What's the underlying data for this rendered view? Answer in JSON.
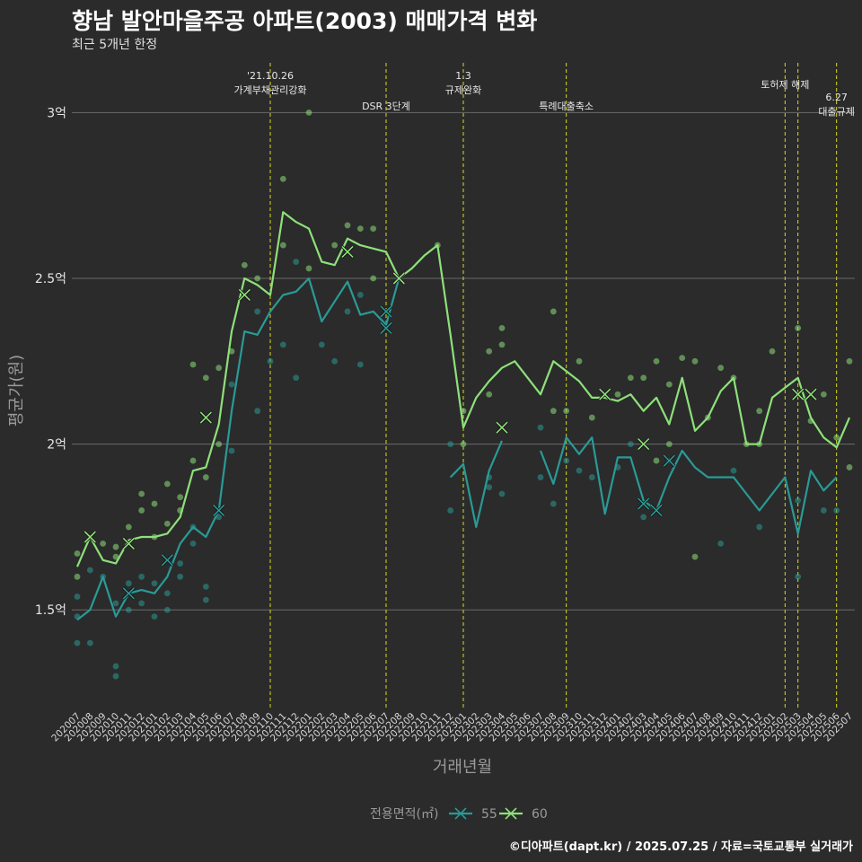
{
  "title": "향남 발안마을주공 아파트(2003) 매매가격 변화",
  "subtitle": "최근 5개년 한정",
  "caption": "©디아파트(dapt.kr) / 2025.07.25 / 자료=국토교통부 실거래가",
  "chart_data": {
    "type": "line",
    "xlabel": "거래년월",
    "ylabel": "평균가(원)",
    "ylim": [
      1.2,
      3.15
    ],
    "yticks": [
      {
        "v": 1.5,
        "label": "1.5억"
      },
      {
        "v": 2.0,
        "label": "2억"
      },
      {
        "v": 2.5,
        "label": "2.5억"
      },
      {
        "v": 3.0,
        "label": "3억"
      }
    ],
    "grid": true,
    "legend_position": "bottom",
    "legend_title": "전용면적(㎡)",
    "categories": [
      "202007",
      "202008",
      "202009",
      "202010",
      "202011",
      "202012",
      "202101",
      "202102",
      "202103",
      "202104",
      "202105",
      "202106",
      "202107",
      "202108",
      "202109",
      "202110",
      "202111",
      "202112",
      "202201",
      "202202",
      "202203",
      "202204",
      "202205",
      "202206",
      "202207",
      "202208",
      "202209",
      "202210",
      "202211",
      "202212",
      "202301",
      "202302",
      "202303",
      "202304",
      "202305",
      "202306",
      "202307",
      "202308",
      "202309",
      "202310",
      "202311",
      "202312",
      "202401",
      "202402",
      "202403",
      "202404",
      "202405",
      "202406",
      "202407",
      "202408",
      "202409",
      "202410",
      "202411",
      "202412",
      "202501",
      "202502",
      "202503",
      "202504",
      "202505",
      "202506",
      "202507"
    ],
    "series": [
      {
        "name": "55",
        "color": "#2a9a96",
        "values": [
          1.47,
          1.5,
          1.6,
          1.48,
          1.55,
          1.56,
          1.55,
          1.6,
          1.7,
          1.75,
          1.72,
          1.8,
          2.1,
          2.34,
          2.33,
          2.4,
          2.45,
          2.46,
          2.5,
          2.37,
          2.43,
          2.49,
          2.39,
          2.4,
          2.36,
          2.5,
          null,
          null,
          null,
          1.9,
          1.94,
          1.75,
          1.92,
          2.01,
          null,
          null,
          1.98,
          1.88,
          2.02,
          1.97,
          2.02,
          1.79,
          1.96,
          1.96,
          1.83,
          1.8,
          1.9,
          1.98,
          1.93,
          1.9,
          1.9,
          1.9,
          1.85,
          1.8,
          1.85,
          1.9,
          1.73,
          1.92,
          1.86,
          1.9,
          null
        ]
      },
      {
        "name": "60",
        "color": "#8ee07a",
        "values": [
          1.63,
          1.72,
          1.65,
          1.64,
          1.71,
          1.72,
          1.72,
          1.73,
          1.78,
          1.92,
          1.93,
          2.06,
          2.34,
          2.5,
          2.48,
          2.45,
          2.7,
          2.67,
          2.65,
          2.55,
          2.54,
          2.62,
          2.6,
          2.59,
          2.58,
          2.5,
          2.53,
          2.57,
          2.6,
          2.33,
          2.05,
          2.14,
          2.19,
          2.23,
          2.25,
          2.2,
          2.15,
          2.25,
          2.22,
          2.19,
          2.14,
          2.14,
          2.13,
          2.15,
          2.1,
          2.14,
          2.06,
          2.2,
          2.04,
          2.08,
          2.16,
          2.2,
          2.0,
          2.0,
          2.14,
          2.17,
          2.2,
          2.08,
          2.02,
          1.99,
          2.08
        ]
      }
    ],
    "markers": [
      {
        "series": "55",
        "x": "202011",
        "y": 1.55
      },
      {
        "series": "55",
        "x": "202102",
        "y": 1.65
      },
      {
        "series": "55",
        "x": "202106",
        "y": 1.8
      },
      {
        "series": "55",
        "x": "202207",
        "y": 2.4
      },
      {
        "series": "55",
        "x": "202207",
        "y": 2.35
      },
      {
        "series": "55",
        "x": "202403",
        "y": 1.82
      },
      {
        "series": "55",
        "x": "202404",
        "y": 1.8
      },
      {
        "series": "55",
        "x": "202405",
        "y": 1.95
      },
      {
        "series": "60",
        "x": "202008",
        "y": 1.72
      },
      {
        "series": "60",
        "x": "202011",
        "y": 1.7
      },
      {
        "series": "60",
        "x": "202105",
        "y": 2.08
      },
      {
        "series": "60",
        "x": "202108",
        "y": 2.45
      },
      {
        "series": "60",
        "x": "202204",
        "y": 2.58
      },
      {
        "series": "60",
        "x": "202208",
        "y": 2.5
      },
      {
        "series": "60",
        "x": "202304",
        "y": 2.05
      },
      {
        "series": "60",
        "x": "202312",
        "y": 2.15
      },
      {
        "series": "60",
        "x": "202403",
        "y": 2.0
      },
      {
        "series": "60",
        "x": "202503",
        "y": 2.15
      },
      {
        "series": "60",
        "x": "202504",
        "y": 2.15
      }
    ],
    "scatter": [
      {
        "series": "55",
        "x": "202007",
        "y": 1.48
      },
      {
        "series": "55",
        "x": "202007",
        "y": 1.4
      },
      {
        "series": "55",
        "x": "202007",
        "y": 1.54
      },
      {
        "series": "55",
        "x": "202008",
        "y": 1.4
      },
      {
        "series": "55",
        "x": "202008",
        "y": 1.62
      },
      {
        "series": "55",
        "x": "202009",
        "y": 1.6
      },
      {
        "series": "55",
        "x": "202010",
        "y": 1.33
      },
      {
        "series": "55",
        "x": "202010",
        "y": 1.3
      },
      {
        "series": "55",
        "x": "202010",
        "y": 1.52
      },
      {
        "series": "55",
        "x": "202011",
        "y": 1.5
      },
      {
        "series": "55",
        "x": "202011",
        "y": 1.58
      },
      {
        "series": "55",
        "x": "202012",
        "y": 1.52
      },
      {
        "series": "55",
        "x": "202012",
        "y": 1.6
      },
      {
        "series": "55",
        "x": "202101",
        "y": 1.48
      },
      {
        "series": "55",
        "x": "202101",
        "y": 1.58
      },
      {
        "series": "55",
        "x": "202102",
        "y": 1.5
      },
      {
        "series": "55",
        "x": "202102",
        "y": 1.55
      },
      {
        "series": "55",
        "x": "202103",
        "y": 1.6
      },
      {
        "series": "55",
        "x": "202103",
        "y": 1.64
      },
      {
        "series": "55",
        "x": "202104",
        "y": 1.75
      },
      {
        "series": "55",
        "x": "202104",
        "y": 1.7
      },
      {
        "series": "55",
        "x": "202105",
        "y": 1.53
      },
      {
        "series": "55",
        "x": "202105",
        "y": 1.57
      },
      {
        "series": "55",
        "x": "202106",
        "y": 1.78
      },
      {
        "series": "55",
        "x": "202107",
        "y": 1.98
      },
      {
        "series": "55",
        "x": "202107",
        "y": 2.18
      },
      {
        "series": "55",
        "x": "202109",
        "y": 2.1
      },
      {
        "series": "55",
        "x": "202109",
        "y": 2.4
      },
      {
        "series": "55",
        "x": "202110",
        "y": 2.25
      },
      {
        "series": "55",
        "x": "202111",
        "y": 2.3
      },
      {
        "series": "55",
        "x": "202112",
        "y": 2.2
      },
      {
        "series": "55",
        "x": "202112",
        "y": 2.55
      },
      {
        "series": "55",
        "x": "202202",
        "y": 2.3
      },
      {
        "series": "55",
        "x": "202203",
        "y": 2.25
      },
      {
        "series": "55",
        "x": "202204",
        "y": 2.4
      },
      {
        "series": "55",
        "x": "202205",
        "y": 2.24
      },
      {
        "series": "55",
        "x": "202205",
        "y": 2.45
      },
      {
        "series": "55",
        "x": "202212",
        "y": 1.8
      },
      {
        "series": "55",
        "x": "202212",
        "y": 2.0
      },
      {
        "series": "55",
        "x": "202303",
        "y": 1.87
      },
      {
        "series": "55",
        "x": "202303",
        "y": 1.9
      },
      {
        "series": "55",
        "x": "202304",
        "y": 1.85
      },
      {
        "series": "55",
        "x": "202307",
        "y": 2.05
      },
      {
        "series": "55",
        "x": "202307",
        "y": 1.9
      },
      {
        "series": "55",
        "x": "202308",
        "y": 1.82
      },
      {
        "series": "55",
        "x": "202309",
        "y": 1.95
      },
      {
        "series": "55",
        "x": "202310",
        "y": 1.92
      },
      {
        "series": "55",
        "x": "202311",
        "y": 1.9
      },
      {
        "series": "55",
        "x": "202401",
        "y": 1.93
      },
      {
        "series": "55",
        "x": "202402",
        "y": 2.0
      },
      {
        "series": "55",
        "x": "202403",
        "y": 1.78
      },
      {
        "series": "55",
        "x": "202405",
        "y": 1.95
      },
      {
        "series": "55",
        "x": "202409",
        "y": 1.7
      },
      {
        "series": "55",
        "x": "202410",
        "y": 1.92
      },
      {
        "series": "55",
        "x": "202412",
        "y": 1.75
      },
      {
        "series": "55",
        "x": "202503",
        "y": 1.6
      },
      {
        "series": "55",
        "x": "202503",
        "y": 1.83
      },
      {
        "series": "55",
        "x": "202505",
        "y": 1.8
      },
      {
        "series": "55",
        "x": "202506",
        "y": 1.8
      },
      {
        "series": "60",
        "x": "202007",
        "y": 1.67
      },
      {
        "series": "60",
        "x": "202007",
        "y": 1.6
      },
      {
        "series": "60",
        "x": "202009",
        "y": 1.7
      },
      {
        "series": "60",
        "x": "202010",
        "y": 1.69
      },
      {
        "series": "60",
        "x": "202010",
        "y": 1.66
      },
      {
        "series": "60",
        "x": "202011",
        "y": 1.75
      },
      {
        "series": "60",
        "x": "202012",
        "y": 1.85
      },
      {
        "series": "60",
        "x": "202012",
        "y": 1.8
      },
      {
        "series": "60",
        "x": "202101",
        "y": 1.82
      },
      {
        "series": "60",
        "x": "202101",
        "y": 1.72
      },
      {
        "series": "60",
        "x": "202102",
        "y": 1.88
      },
      {
        "series": "60",
        "x": "202102",
        "y": 1.76
      },
      {
        "series": "60",
        "x": "202103",
        "y": 1.84
      },
      {
        "series": "60",
        "x": "202103",
        "y": 1.8
      },
      {
        "series": "60",
        "x": "202104",
        "y": 2.24
      },
      {
        "series": "60",
        "x": "202104",
        "y": 1.95
      },
      {
        "series": "60",
        "x": "202105",
        "y": 2.2
      },
      {
        "series": "60",
        "x": "202105",
        "y": 1.9
      },
      {
        "series": "60",
        "x": "202106",
        "y": 2.23
      },
      {
        "series": "60",
        "x": "202106",
        "y": 2.0
      },
      {
        "series": "60",
        "x": "202107",
        "y": 2.28
      },
      {
        "series": "60",
        "x": "202108",
        "y": 2.54
      },
      {
        "series": "60",
        "x": "202109",
        "y": 2.5
      },
      {
        "series": "60",
        "x": "202111",
        "y": 2.8
      },
      {
        "series": "60",
        "x": "202111",
        "y": 2.6
      },
      {
        "series": "60",
        "x": "202201",
        "y": 3.0
      },
      {
        "series": "60",
        "x": "202201",
        "y": 2.53
      },
      {
        "series": "60",
        "x": "202203",
        "y": 2.6
      },
      {
        "series": "60",
        "x": "202204",
        "y": 2.66
      },
      {
        "series": "60",
        "x": "202205",
        "y": 2.65
      },
      {
        "series": "60",
        "x": "202206",
        "y": 2.65
      },
      {
        "series": "60",
        "x": "202206",
        "y": 2.5
      },
      {
        "series": "60",
        "x": "202211",
        "y": 2.6
      },
      {
        "series": "60",
        "x": "202301",
        "y": 2.1
      },
      {
        "series": "60",
        "x": "202301",
        "y": 2.0
      },
      {
        "series": "60",
        "x": "202303",
        "y": 2.28
      },
      {
        "series": "60",
        "x": "202303",
        "y": 2.15
      },
      {
        "series": "60",
        "x": "202304",
        "y": 2.35
      },
      {
        "series": "60",
        "x": "202304",
        "y": 2.3
      },
      {
        "series": "60",
        "x": "202308",
        "y": 2.4
      },
      {
        "series": "60",
        "x": "202308",
        "y": 2.1
      },
      {
        "series": "60",
        "x": "202309",
        "y": 2.1
      },
      {
        "series": "60",
        "x": "202310",
        "y": 2.25
      },
      {
        "series": "60",
        "x": "202311",
        "y": 2.08
      },
      {
        "series": "60",
        "x": "202401",
        "y": 2.15
      },
      {
        "series": "60",
        "x": "202402",
        "y": 2.2
      },
      {
        "series": "60",
        "x": "202403",
        "y": 2.2
      },
      {
        "series": "60",
        "x": "202404",
        "y": 2.25
      },
      {
        "series": "60",
        "x": "202404",
        "y": 1.95
      },
      {
        "series": "60",
        "x": "202405",
        "y": 2.18
      },
      {
        "series": "60",
        "x": "202405",
        "y": 2.0
      },
      {
        "series": "60",
        "x": "202406",
        "y": 2.26
      },
      {
        "series": "60",
        "x": "202407",
        "y": 2.25
      },
      {
        "series": "60",
        "x": "202407",
        "y": 1.66
      },
      {
        "series": "60",
        "x": "202408",
        "y": 2.08
      },
      {
        "series": "60",
        "x": "202409",
        "y": 2.23
      },
      {
        "series": "60",
        "x": "202410",
        "y": 2.2
      },
      {
        "series": "60",
        "x": "202411",
        "y": 2.0
      },
      {
        "series": "60",
        "x": "202412",
        "y": 2.1
      },
      {
        "series": "60",
        "x": "202412",
        "y": 2.0
      },
      {
        "series": "60",
        "x": "202501",
        "y": 2.28
      },
      {
        "series": "60",
        "x": "202503",
        "y": 2.35
      },
      {
        "series": "60",
        "x": "202504",
        "y": 2.07
      },
      {
        "series": "60",
        "x": "202505",
        "y": 2.15
      },
      {
        "series": "60",
        "x": "202506",
        "y": 2.02
      },
      {
        "series": "60",
        "x": "202507",
        "y": 2.25
      },
      {
        "series": "60",
        "x": "202507",
        "y": 1.93
      }
    ],
    "events": [
      {
        "x": "202110",
        "lines": [
          "'21.10.26",
          "가계부채관리강화"
        ],
        "level": 0
      },
      {
        "x": "202207",
        "lines": [
          "DSR 3단계"
        ],
        "level": 1
      },
      {
        "x": "202301",
        "lines": [
          "1.3",
          "규제완화"
        ],
        "level": 0
      },
      {
        "x": "202309",
        "lines": [
          "특례대출축소"
        ],
        "level": 1
      },
      {
        "x": "202502",
        "lines": [
          "토허제 해제"
        ],
        "level": 2
      },
      {
        "x": "202503",
        "lines": [],
        "level": 2
      },
      {
        "x": "202506",
        "lines": [
          "6.27",
          "대출규제"
        ],
        "level": 3
      }
    ],
    "event_color": "#d9d920"
  }
}
